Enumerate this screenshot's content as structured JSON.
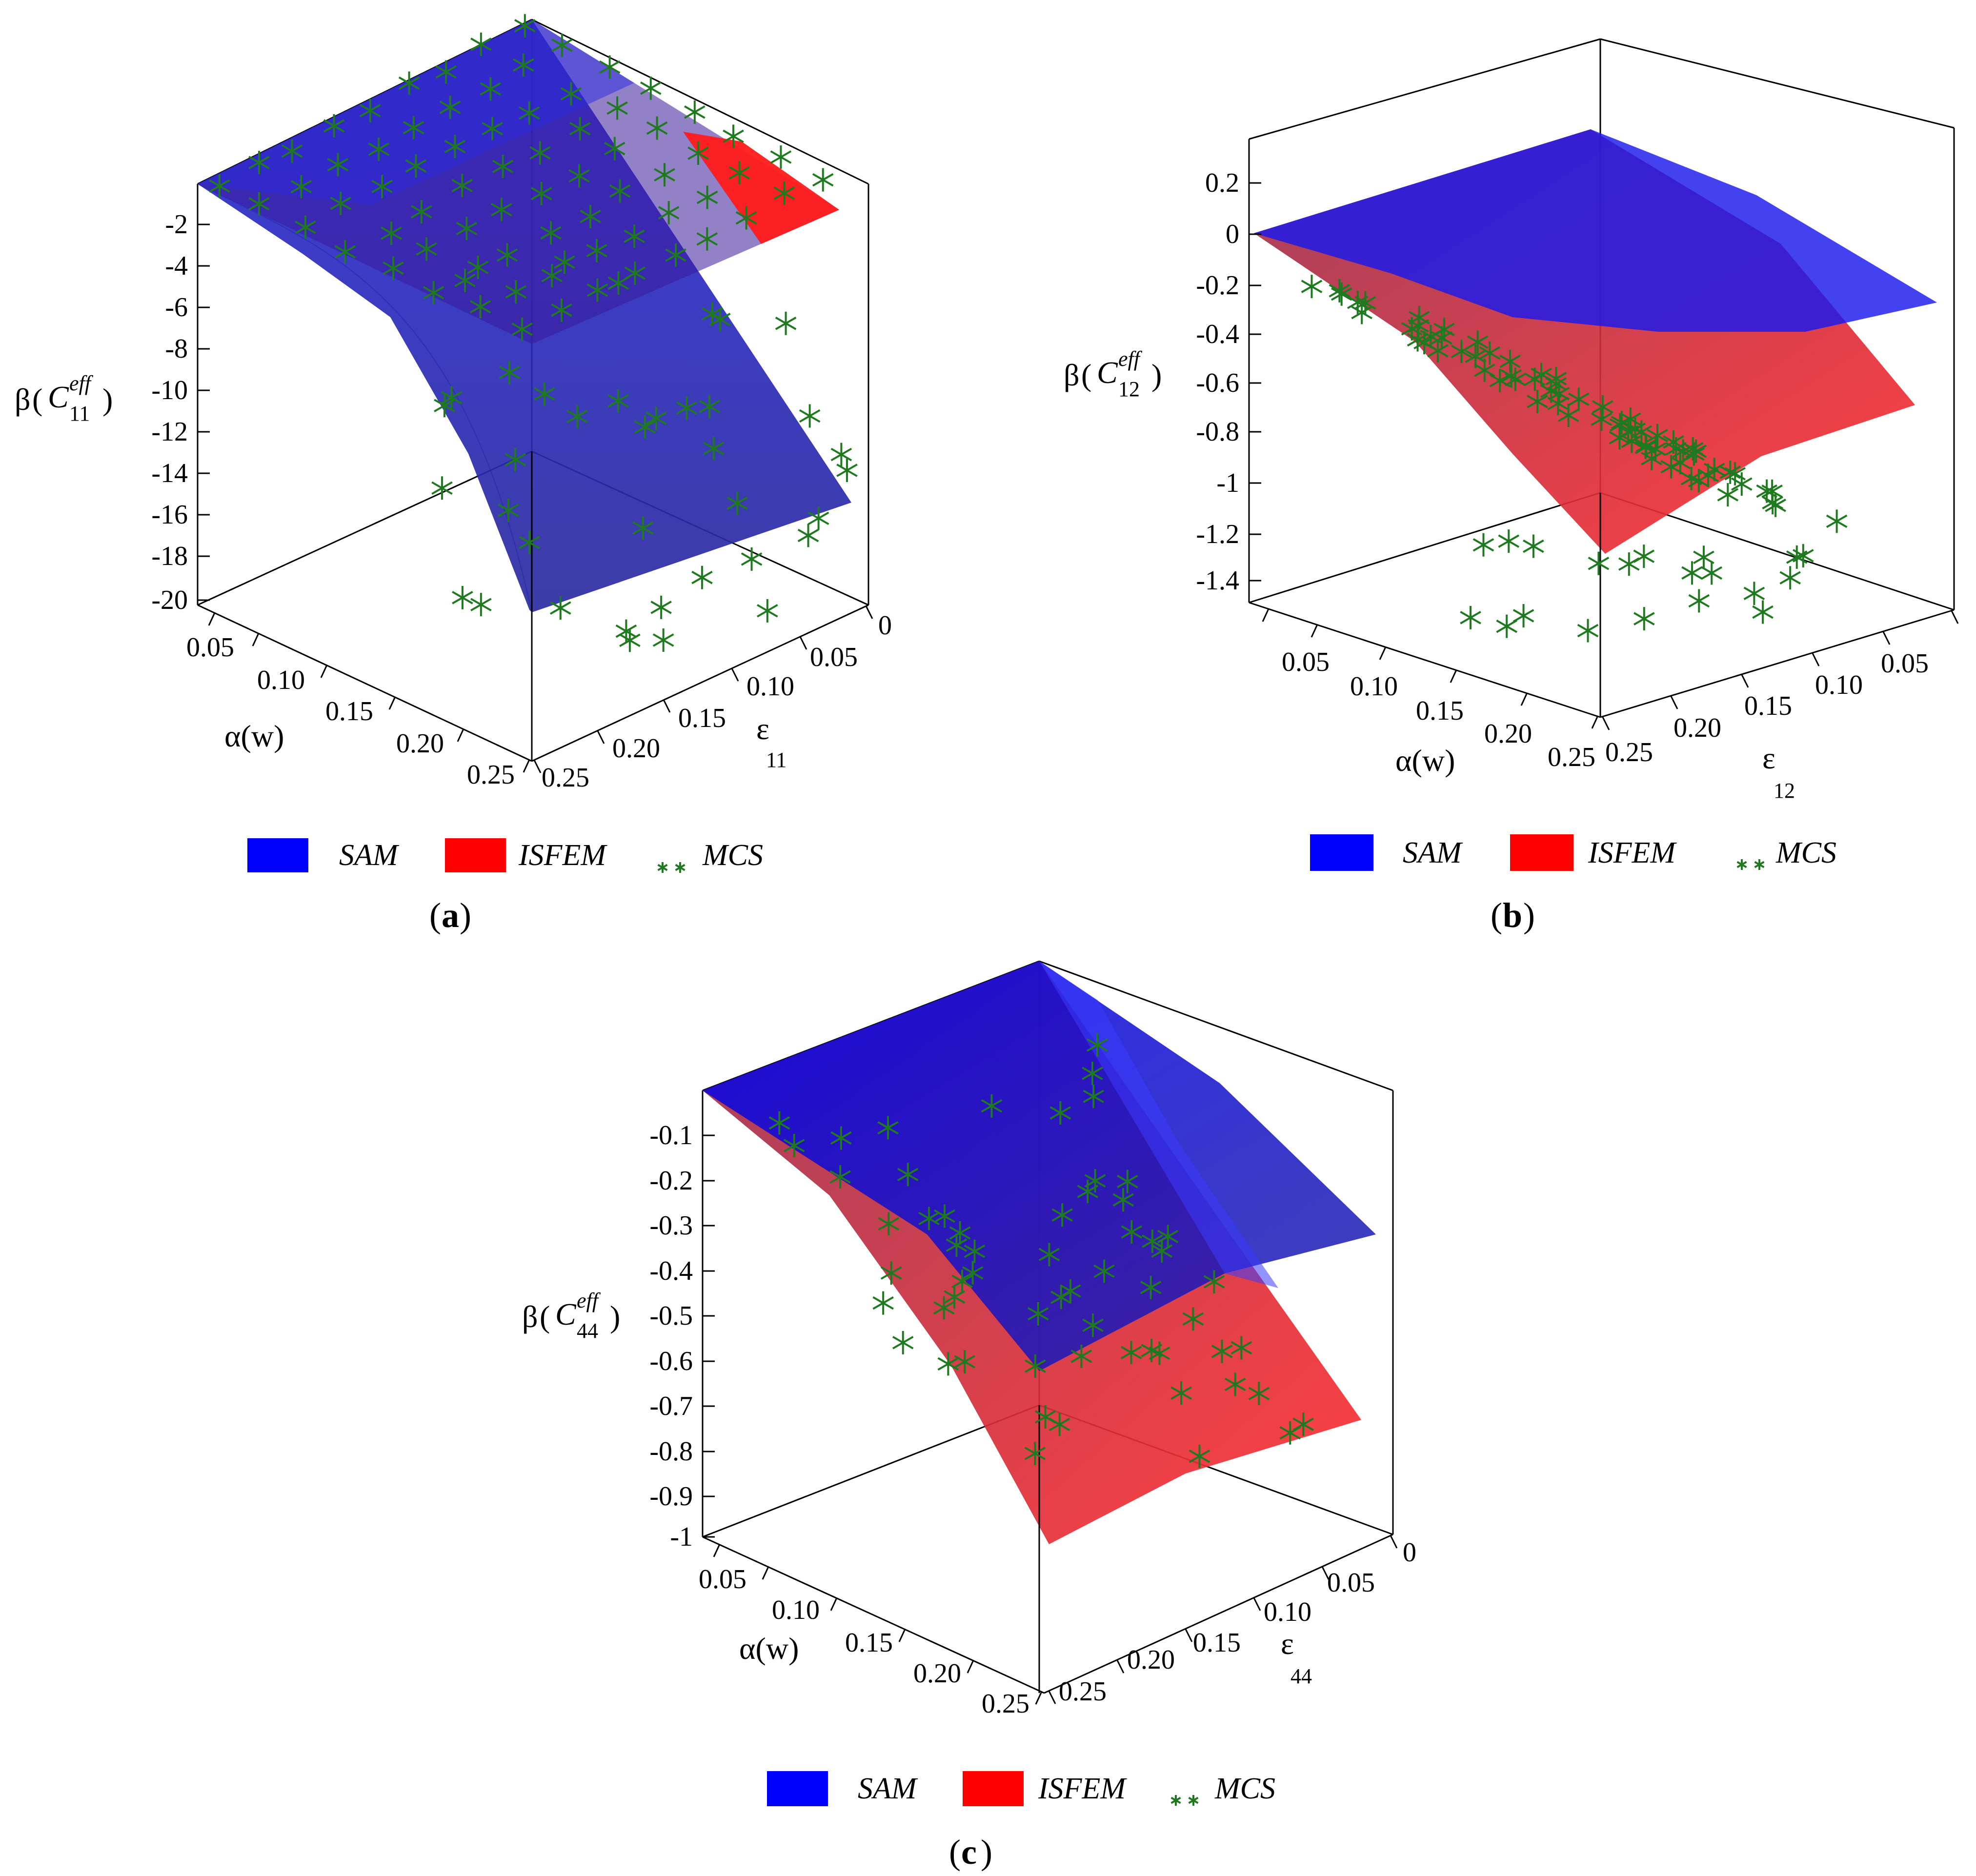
{
  "panels": [
    {
      "id": "a",
      "caption": {
        "open": "(",
        "letter": "a",
        "close": ")"
      },
      "z_label": {
        "beta": "β",
        "c": "C",
        "sup": "eff",
        "sub": "11"
      },
      "x_label": "α(w)",
      "y_label": {
        "eps": "ε",
        "sub": "11"
      },
      "z_ticks": [
        "-2",
        "-4",
        "-6",
        "-8",
        "-10",
        "-12",
        "-14",
        "-16",
        "-18",
        "-20"
      ],
      "x_ticks": [
        "0.05",
        "0.10",
        "0.15",
        "0.20",
        "0.25"
      ],
      "y_ticks": [
        "0",
        "0.05",
        "0.10",
        "0.15",
        "0.20",
        "0.25"
      ],
      "legend": [
        "SAM",
        "ISFEM",
        "MCS"
      ]
    },
    {
      "id": "b",
      "caption": {
        "open": "(",
        "letter": "b",
        "close": ")"
      },
      "z_label": {
        "beta": "β",
        "c": "C",
        "sup": "eff",
        "sub": "12"
      },
      "x_label": "α(w)",
      "y_label": {
        "eps": "ε",
        "sub": "12"
      },
      "z_ticks": [
        "0.2",
        "0",
        "-0.2",
        "-0.4",
        "-0.6",
        "-0.8",
        "-1",
        "-1.2",
        "-1.4"
      ],
      "x_ticks": [
        "0.05",
        "0.10",
        "0.15",
        "0.20",
        "0.25"
      ],
      "y_ticks": [
        "0.05",
        "0.10",
        "0.15",
        "0.20",
        "0.25"
      ],
      "legend": [
        "SAM",
        "ISFEM",
        "MCS"
      ]
    },
    {
      "id": "c",
      "caption": {
        "open": "(",
        "letter": "c",
        "close": ")"
      },
      "z_label": {
        "beta": "β",
        "c": "C",
        "sup": "eff",
        "sub": "44"
      },
      "x_label": "α(w)",
      "y_label": {
        "eps": "ε",
        "sub": "44"
      },
      "z_ticks": [
        "-0.1",
        "-0.2",
        "-0.3",
        "-0.4",
        "-0.5",
        "-0.6",
        "-0.7",
        "-0.8",
        "-0.9",
        "-1"
      ],
      "x_ticks": [
        "0.05",
        "0.10",
        "0.15",
        "0.20",
        "0.25"
      ],
      "y_ticks": [
        "0",
        "0.05",
        "0.10",
        "0.15",
        "0.20",
        "0.25"
      ],
      "legend": [
        "SAM",
        "ISFEM",
        "MCS"
      ]
    }
  ],
  "colors": {
    "SAM": "#0000ff",
    "ISFEM": "#ff0000",
    "MCS": "#1f7a1f",
    "axis": "#000000"
  },
  "chart_data": [
    {
      "type": "surface",
      "panel": "a",
      "x_axis": "α(w)",
      "y_axis": "ε11",
      "x_range": [
        0,
        0.25
      ],
      "y_range": [
        0,
        0.25
      ],
      "z_range": [
        -20,
        0
      ],
      "series": [
        {
          "name": "SAM",
          "z_corners": {
            "x0_y0": 0,
            "x0_y025": 0,
            "x025_y0": -19,
            "x025_y025": -15
          }
        },
        {
          "name": "ISFEM",
          "z_corners": {
            "x0_y0": 0,
            "x0_y025": 0,
            "x025_y0": -7.5,
            "x025_y025": -2.6
          }
        },
        {
          "name": "MCS",
          "note_points": 90
        }
      ]
    },
    {
      "type": "surface",
      "panel": "b",
      "x_axis": "α(w)",
      "y_axis": "ε12",
      "x_range": [
        0,
        0.25
      ],
      "y_range": [
        0,
        0.25
      ],
      "z_range": [
        -1.4,
        0.2
      ],
      "series": [
        {
          "name": "SAM",
          "z_corners": {
            "x0_y0": 0,
            "x0_y025": 0.25,
            "x025_y0": -0.43,
            "x025_y025": -0.28
          }
        },
        {
          "name": "ISFEM",
          "z_corners": {
            "x0_y0": 0,
            "x0_y025": 0,
            "x025_y0": -1.25,
            "x025_y025": -0.7
          }
        },
        {
          "name": "MCS",
          "note_points": 60
        }
      ]
    },
    {
      "type": "surface",
      "panel": "c",
      "x_axis": "α(w)",
      "y_axis": "ε44",
      "x_range": [
        0,
        0.25
      ],
      "y_range": [
        0,
        0.25
      ],
      "z_range": [
        -1,
        0
      ],
      "series": [
        {
          "name": "SAM",
          "z_corners": {
            "x0_y0": 0,
            "x0_y025": 0,
            "x025_y0": -0.6,
            "x025_y025": -0.3
          }
        },
        {
          "name": "ISFEM",
          "z_corners": {
            "x0_y0": 0,
            "x0_y025": 0,
            "x025_y0": -1,
            "x025_y025": -0.7
          }
        },
        {
          "name": "MCS",
          "note_points": 55
        }
      ]
    }
  ]
}
